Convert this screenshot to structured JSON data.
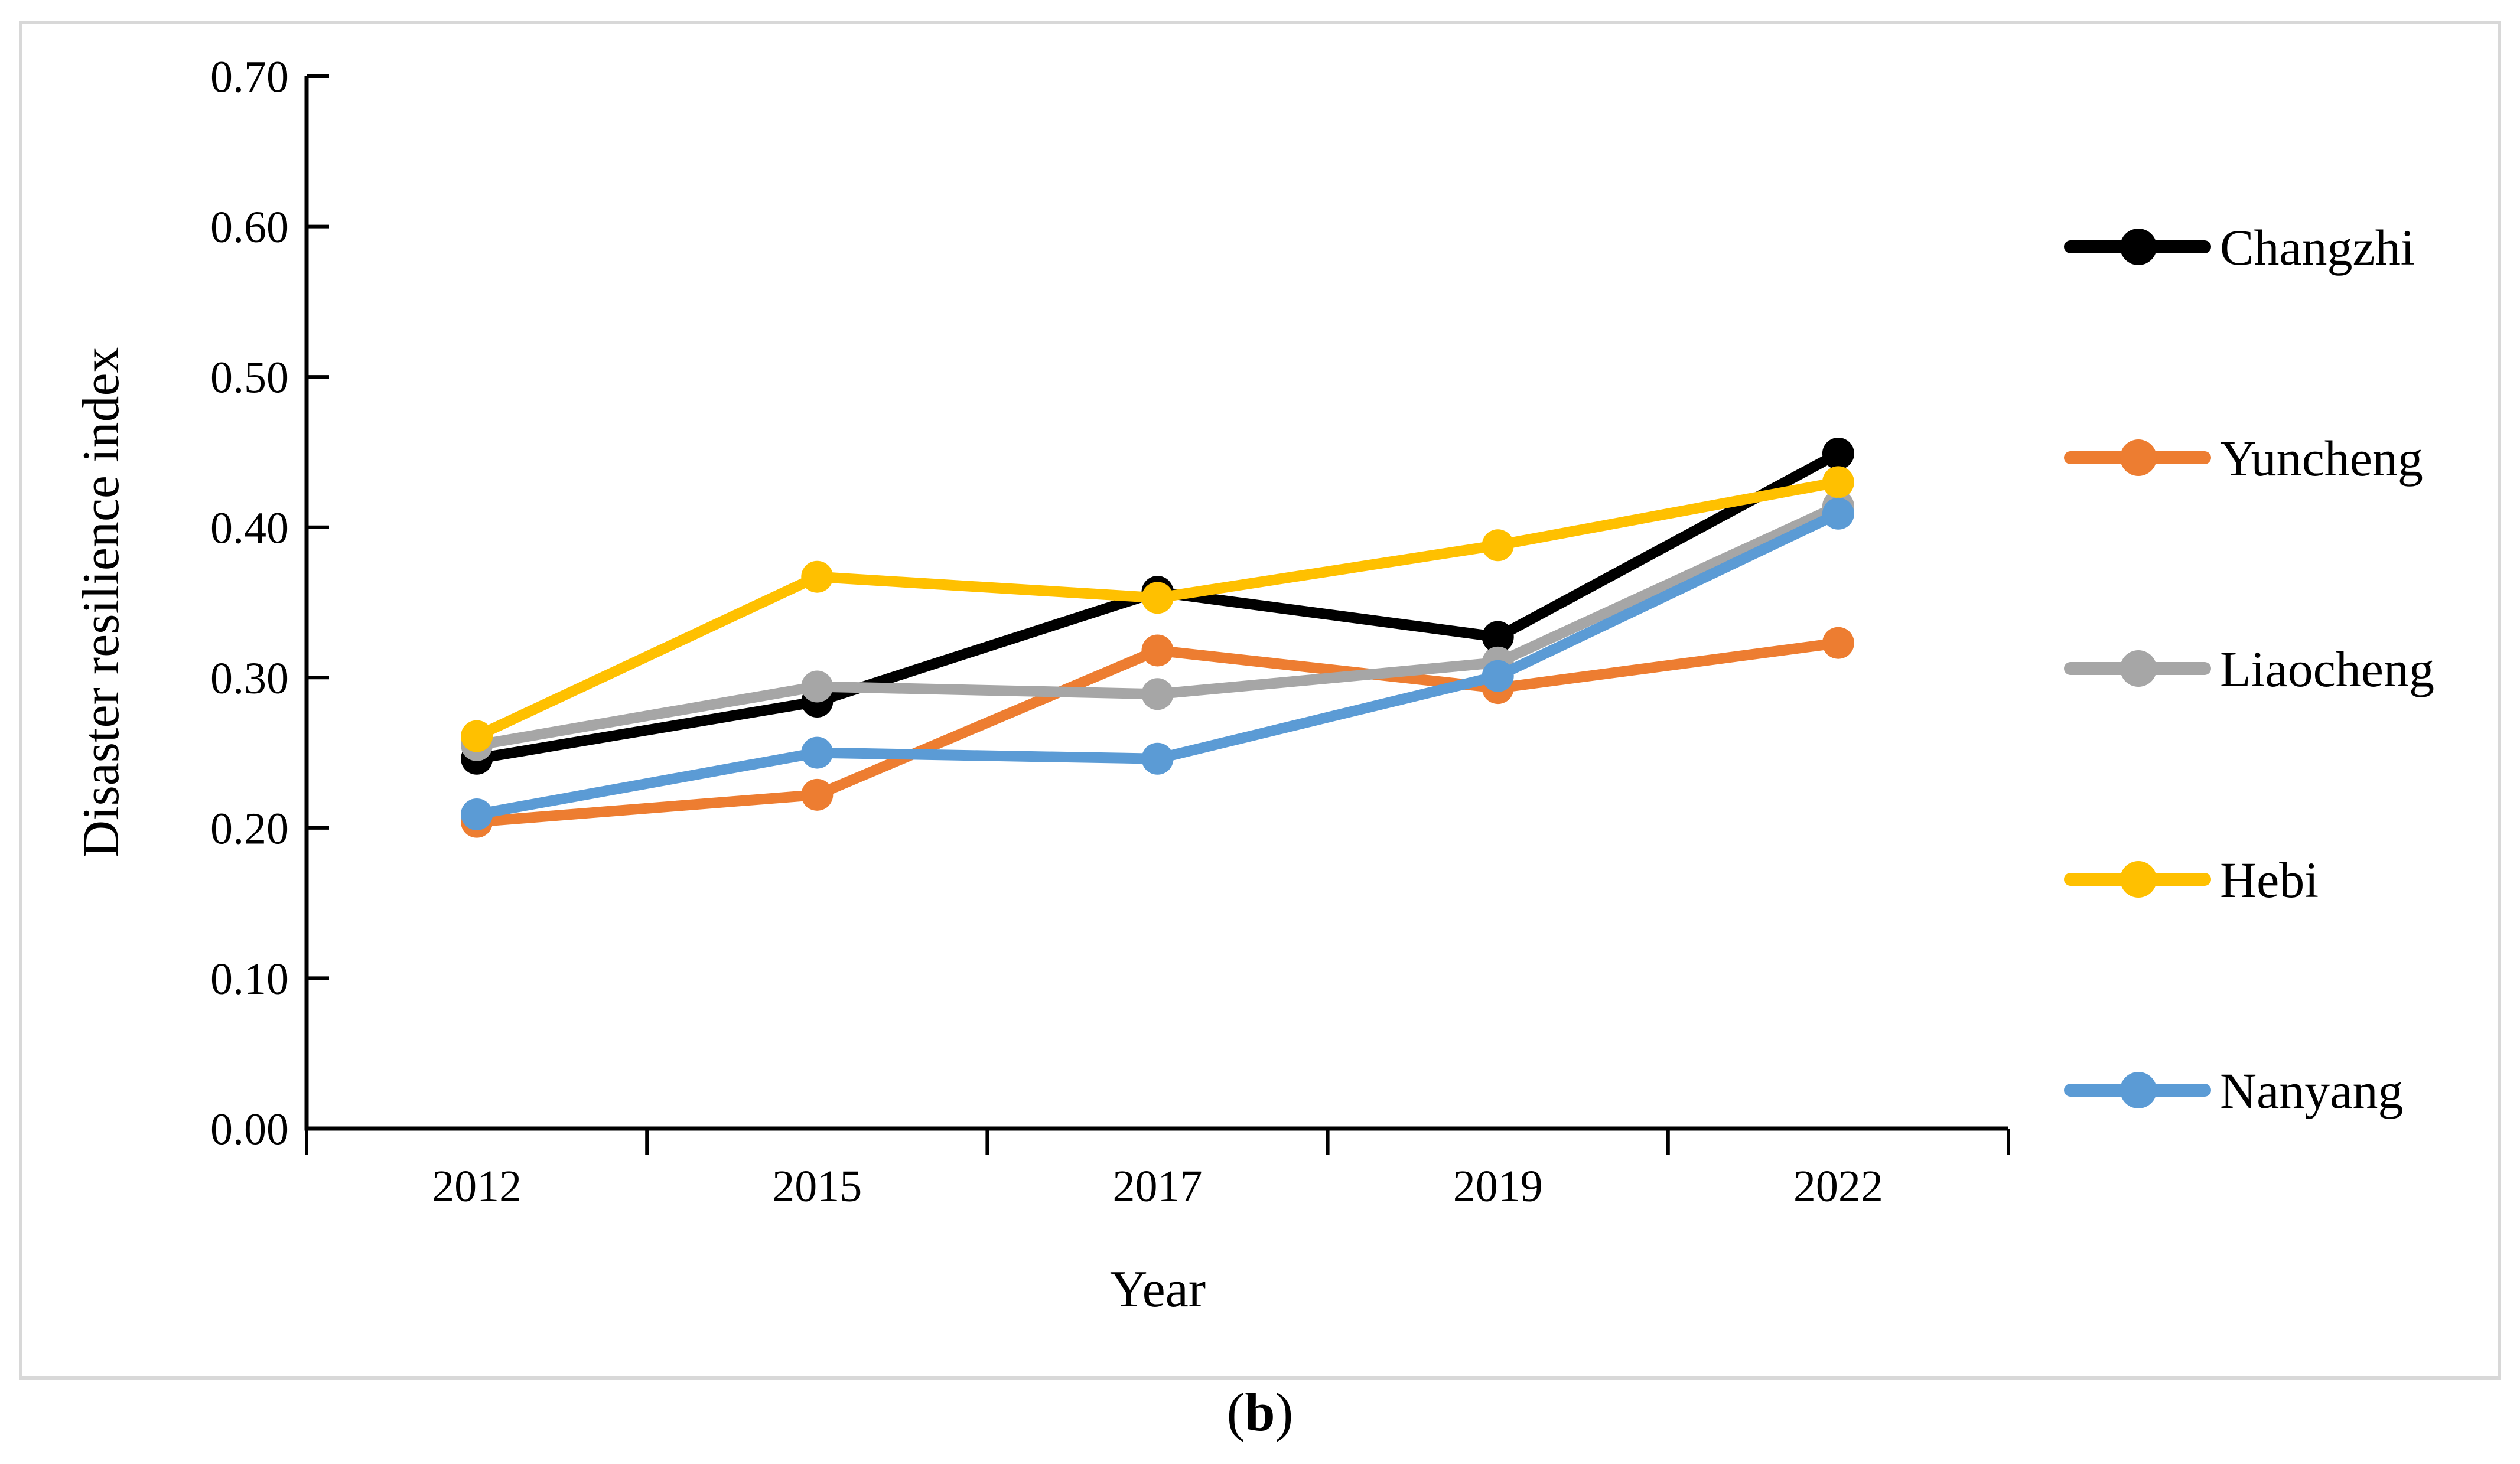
{
  "figure": {
    "caption_open": "(",
    "caption_label": "b",
    "caption_close": ")",
    "frame_border_color": "#d8d8d8",
    "background_color": "#ffffff"
  },
  "chart_data": {
    "type": "line",
    "title": "",
    "xlabel": "Year",
    "ylabel": "Disaster resilience index",
    "categories": [
      "2012",
      "2015",
      "2017",
      "2019",
      "2022"
    ],
    "y_ticks": [
      "0.00",
      "0.10",
      "0.20",
      "0.30",
      "0.40",
      "0.50",
      "0.60",
      "0.70"
    ],
    "ylim": [
      0.0,
      0.7
    ],
    "y_tick_step": 0.1,
    "grid": false,
    "legend_position": "right-outside-vertical",
    "axis_color": "#000000",
    "series": [
      {
        "name": "Changzhi",
        "color": "#000000",
        "values": [
          0.246,
          0.284,
          0.357,
          0.327,
          0.449
        ]
      },
      {
        "name": "Yuncheng",
        "color": "#ED7D31",
        "values": [
          0.204,
          0.222,
          0.318,
          0.293,
          0.323
        ]
      },
      {
        "name": "Liaocheng",
        "color": "#A6A6A6",
        "values": [
          0.255,
          0.294,
          0.289,
          0.31,
          0.414
        ]
      },
      {
        "name": "Hebi",
        "color": "#FFC000",
        "values": [
          0.261,
          0.367,
          0.353,
          0.388,
          0.43
        ]
      },
      {
        "name": "Nanyang",
        "color": "#5B9BD5",
        "values": [
          0.209,
          0.25,
          0.246,
          0.301,
          0.409
        ]
      }
    ]
  }
}
